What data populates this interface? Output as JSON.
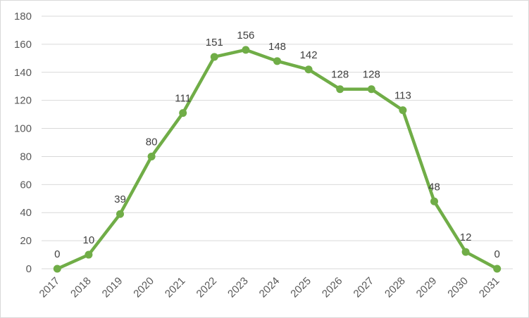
{
  "chart_data": {
    "type": "line",
    "x": [
      "2017",
      "2018",
      "2019",
      "2020",
      "2021",
      "2022",
      "2023",
      "2024",
      "2025",
      "2026",
      "2027",
      "2028",
      "2029",
      "2030",
      "2031"
    ],
    "series": [
      {
        "values": [
          0,
          10,
          39,
          80,
          111,
          151,
          156,
          148,
          142,
          128,
          128,
          113,
          48,
          12,
          0
        ],
        "color": "#70ad47"
      }
    ],
    "ylim": [
      0,
      180
    ],
    "yticks": [
      0,
      20,
      40,
      60,
      80,
      100,
      120,
      140,
      160,
      180
    ],
    "grid": true,
    "data_labels": true,
    "legend": "none",
    "gridline_color": "#d9d9d9",
    "title": "",
    "xlabel": "",
    "ylabel": ""
  }
}
